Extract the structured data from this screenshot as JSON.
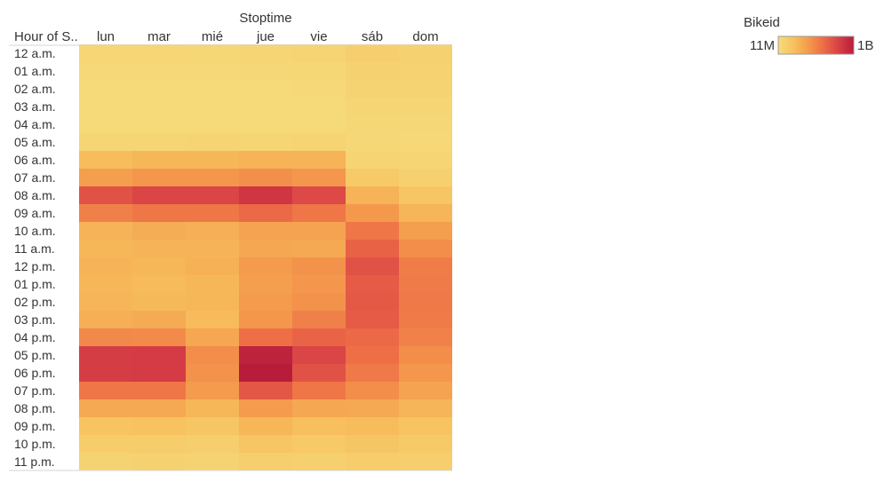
{
  "chart_data": {
    "type": "heatmap",
    "column_title": "Stoptime",
    "row_header": "Hour of S..",
    "columns": [
      "lun",
      "mar",
      "mié",
      "jue",
      "vie",
      "sáb",
      "dom"
    ],
    "rows": [
      "12 a.m.",
      "01 a.m.",
      "02 a.m.",
      "03 a.m.",
      "04 a.m.",
      "05 a.m.",
      "06 a.m.",
      "07 a.m.",
      "08 a.m.",
      "09 a.m.",
      "10 a.m.",
      "11 a.m.",
      "12 p.m.",
      "01 p.m.",
      "02 p.m.",
      "03 p.m.",
      "04 p.m.",
      "05 p.m.",
      "06 p.m.",
      "07 p.m.",
      "08 p.m.",
      "09 p.m.",
      "10 p.m.",
      "11 p.m."
    ],
    "values_millions": [
      [
        55,
        55,
        50,
        60,
        70,
        110,
        95
      ],
      [
        40,
        40,
        38,
        45,
        50,
        95,
        85
      ],
      [
        30,
        30,
        28,
        35,
        40,
        80,
        75
      ],
      [
        25,
        25,
        22,
        30,
        35,
        65,
        60
      ],
      [
        25,
        25,
        22,
        30,
        35,
        50,
        45
      ],
      [
        60,
        65,
        70,
        65,
        70,
        45,
        40
      ],
      [
        230,
        260,
        260,
        280,
        280,
        70,
        60
      ],
      [
        380,
        420,
        420,
        450,
        420,
        140,
        100
      ],
      [
        720,
        780,
        780,
        860,
        760,
        280,
        170
      ],
      [
        520,
        560,
        560,
        620,
        560,
        410,
        270
      ],
      [
        280,
        310,
        300,
        360,
        360,
        560,
        380
      ],
      [
        260,
        280,
        280,
        340,
        330,
        650,
        460
      ],
      [
        280,
        260,
        290,
        400,
        440,
        720,
        530
      ],
      [
        260,
        240,
        260,
        380,
        420,
        680,
        540
      ],
      [
        270,
        250,
        260,
        400,
        440,
        690,
        550
      ],
      [
        300,
        320,
        240,
        420,
        520,
        680,
        540
      ],
      [
        480,
        470,
        340,
        590,
        640,
        620,
        510
      ],
      [
        820,
        830,
        460,
        960,
        780,
        590,
        460
      ],
      [
        820,
        830,
        440,
        1000,
        720,
        550,
        420
      ],
      [
        560,
        560,
        400,
        700,
        560,
        460,
        360
      ],
      [
        330,
        330,
        260,
        400,
        340,
        330,
        270
      ],
      [
        190,
        200,
        170,
        260,
        220,
        230,
        190
      ],
      [
        120,
        130,
        110,
        170,
        150,
        170,
        140
      ],
      [
        80,
        90,
        80,
        110,
        100,
        130,
        110
      ]
    ],
    "legend": {
      "title": "Bikeid",
      "min_label": "11M",
      "max_label": "1B",
      "min": 11,
      "max": 1000
    },
    "color_scale": [
      "#f6dc7c",
      "#f7c15e",
      "#f49a4c",
      "#ed6c46",
      "#d84046",
      "#b81c3b"
    ]
  }
}
